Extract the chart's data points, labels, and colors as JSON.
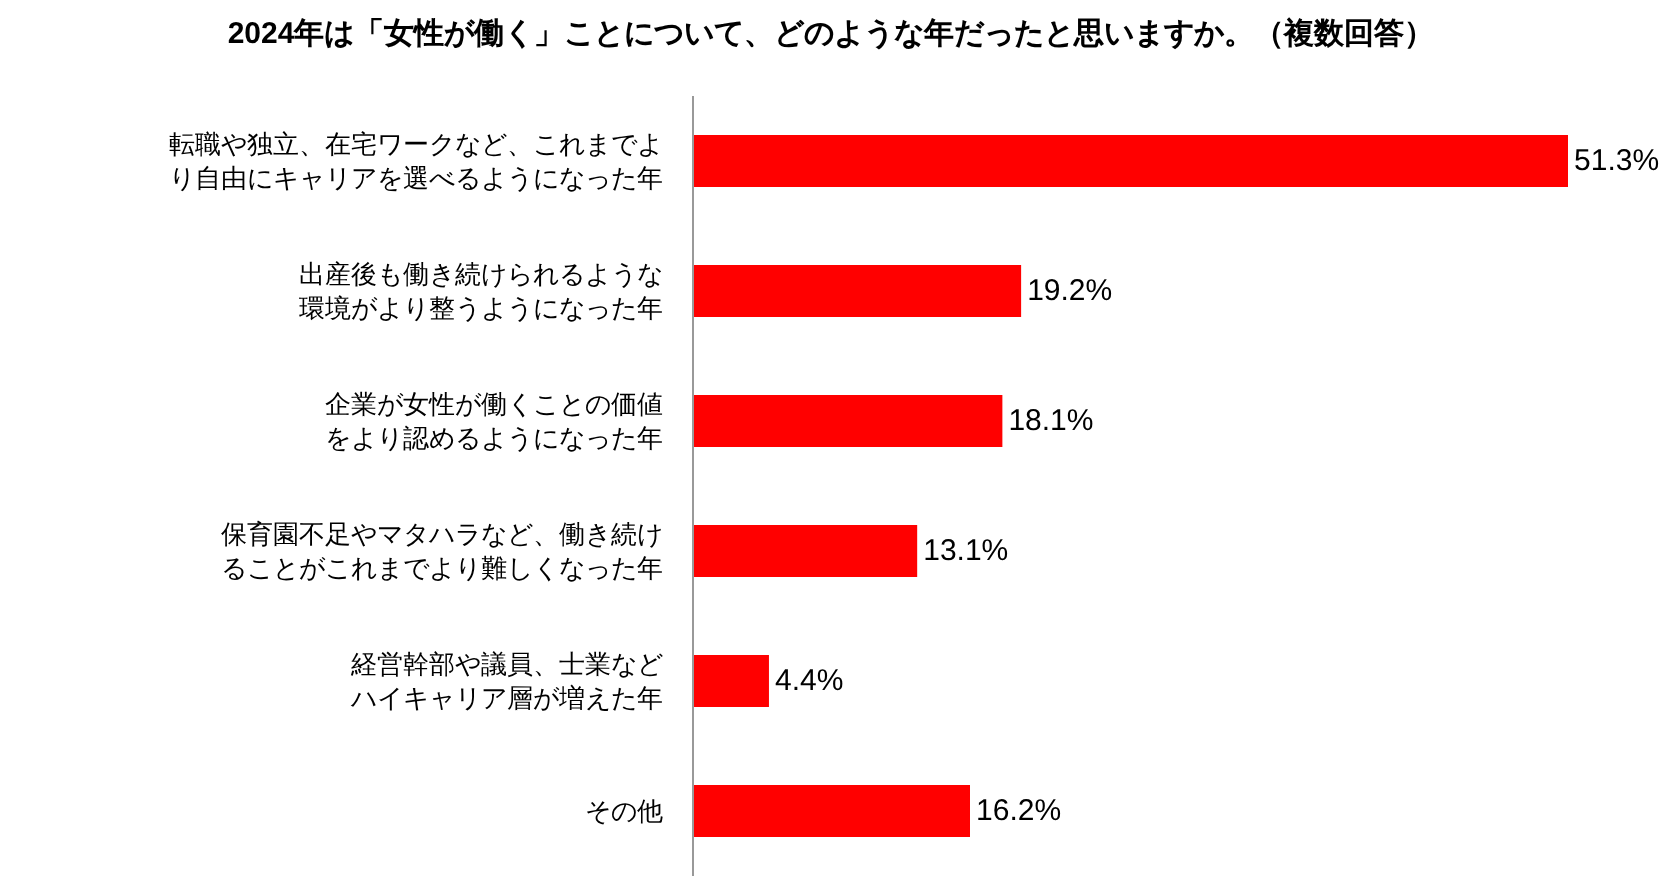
{
  "chart_data": {
    "type": "bar",
    "orientation": "horizontal",
    "title": "2024年は「女性が働く」ことについて、どのような年だったと思いますか。（複数回答）",
    "categories": [
      "転職や独立、在宅ワークなど、これまでより自由にキャリアを選べるようになった年",
      "出産後も働き続けられるような環境がより整うようになった年",
      "企業が女性が働くことの価値をより認めるようになった年",
      "保育園不足やマタハラなど、働き続けることがこれまでより難しくなった年",
      "経営幹部や議員、士業などハイキャリア層が増えた年",
      "その他"
    ],
    "values": [
      51.3,
      19.2,
      18.1,
      13.1,
      4.4,
      16.2
    ],
    "value_labels": [
      "51.3%",
      "19.2%",
      "18.1%",
      "13.1%",
      "4.4%",
      "16.2%"
    ],
    "color": "#ff0000",
    "tick_labels": "y"
  }
}
